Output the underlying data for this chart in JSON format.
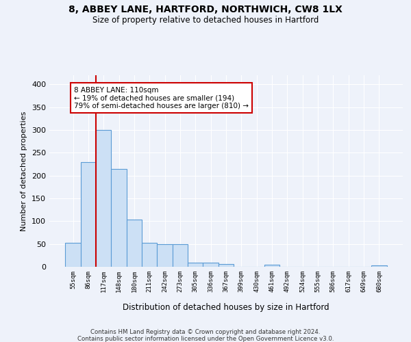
{
  "title1": "8, ABBEY LANE, HARTFORD, NORTHWICH, CW8 1LX",
  "title2": "Size of property relative to detached houses in Hartford",
  "xlabel": "Distribution of detached houses by size in Hartford",
  "ylabel": "Number of detached properties",
  "bin_labels": [
    "55sqm",
    "86sqm",
    "117sqm",
    "148sqm",
    "180sqm",
    "211sqm",
    "242sqm",
    "273sqm",
    "305sqm",
    "336sqm",
    "367sqm",
    "399sqm",
    "430sqm",
    "461sqm",
    "492sqm",
    "524sqm",
    "555sqm",
    "586sqm",
    "617sqm",
    "649sqm",
    "680sqm"
  ],
  "bar_heights": [
    53,
    230,
    300,
    215,
    103,
    52,
    50,
    49,
    9,
    9,
    6,
    0,
    0,
    4,
    0,
    0,
    0,
    0,
    0,
    0,
    3
  ],
  "bar_color": "#cce0f5",
  "bar_edge_color": "#5b9bd5",
  "red_line_index": 1.5,
  "annotation_text": "8 ABBEY LANE: 110sqm\n← 19% of detached houses are smaller (194)\n79% of semi-detached houses are larger (810) →",
  "annotation_box_color": "#ffffff",
  "annotation_box_edge": "#cc0000",
  "red_line_color": "#cc0000",
  "footer1": "Contains HM Land Registry data © Crown copyright and database right 2024.",
  "footer2": "Contains public sector information licensed under the Open Government Licence v3.0.",
  "background_color": "#eef2fa",
  "ylim": [
    0,
    420
  ],
  "yticks": [
    0,
    50,
    100,
    150,
    200,
    250,
    300,
    350,
    400
  ]
}
